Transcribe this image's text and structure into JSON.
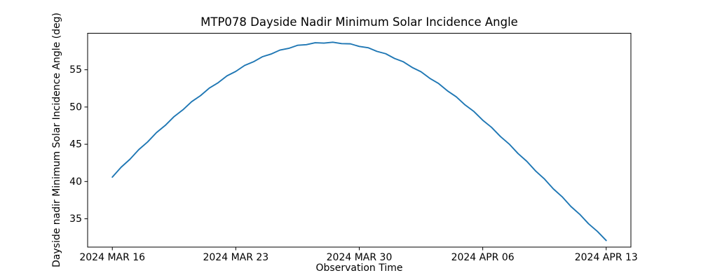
{
  "chart_data": {
    "type": "line",
    "title": "MTP078 Dayside Nadir Minimum Solar Incidence Angle",
    "xlabel": "Observation Time",
    "ylabel": "Dayside nadir Minimum Solar Incidence Angle (deg)",
    "x_axis_description": "time, days since 2024 MAR 16",
    "xlim_days": [
      -1.4,
      29.4
    ],
    "ylim": [
      31.2,
      59.9
    ],
    "xticks": {
      "days": [
        0,
        7,
        14,
        21,
        28
      ],
      "labels": [
        "2024 MAR 16",
        "2024 MAR 23",
        "2024 MAR 30",
        "2024 APR 06",
        "2024 APR 13"
      ]
    },
    "yticks": {
      "values": [
        35,
        40,
        45,
        50,
        55
      ],
      "labels": [
        "35",
        "40",
        "45",
        "50",
        "55"
      ]
    },
    "grid": false,
    "legend": "none",
    "line_color": "#1f77b4",
    "axis_color": "#000000",
    "background_color": "#ffffff",
    "series": [
      {
        "name": "dayside-nadir-minimum-solar-incidence-angle",
        "peak": {
          "day": 12.25,
          "value_deg": 58.7
        },
        "start": {
          "label": "2024 MAR 16",
          "value_deg": 40.6
        },
        "end": {
          "label": "2024 APR 13",
          "value_deg": 32.1
        },
        "x_days": [
          0,
          0.5,
          1,
          1.5,
          2,
          2.5,
          3,
          3.5,
          4,
          4.5,
          5,
          5.5,
          6,
          6.5,
          7,
          7.5,
          8,
          8.5,
          9,
          9.5,
          10,
          10.5,
          11,
          11.5,
          12,
          12.5,
          13,
          13.5,
          14,
          14.5,
          15,
          15.5,
          16,
          16.5,
          17,
          17.5,
          18,
          18.5,
          19,
          19.5,
          20,
          20.5,
          21,
          21.5,
          22,
          22.5,
          23,
          23.5,
          24,
          24.5,
          25,
          25.5,
          26,
          26.5,
          27,
          27.5,
          28
        ],
        "y_deg": [
          40.59,
          41.92,
          42.99,
          44.28,
          45.31,
          46.56,
          47.53,
          48.71,
          49.62,
          50.72,
          51.53,
          52.54,
          53.26,
          54.18,
          54.78,
          55.58,
          56.07,
          56.74,
          57.11,
          57.64,
          57.87,
          58.28,
          58.37,
          58.63,
          58.58,
          58.7,
          58.51,
          58.48,
          58.13,
          57.96,
          57.47,
          57.15,
          56.52,
          56.07,
          55.31,
          54.73,
          53.85,
          53.15,
          52.17,
          51.37,
          50.28,
          49.4,
          48.23,
          47.27,
          46.05,
          45.03,
          43.76,
          42.71,
          41.41,
          40.34,
          39.02,
          37.96,
          36.65,
          35.6,
          34.33,
          33.31,
          32.09
        ]
      }
    ]
  }
}
